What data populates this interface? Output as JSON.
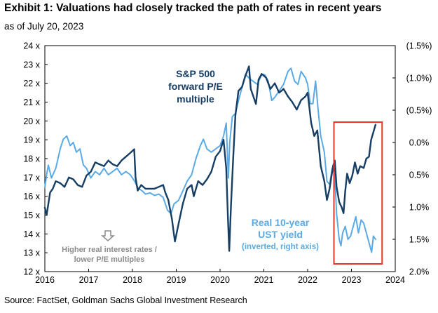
{
  "title": "Exhibit 1: Valuations had closely tracked the path of rates in recent years",
  "subtitle": "as of July 20, 2023",
  "source": "Source: FactSet, Goldman Sachs Global Investment Research",
  "chart_data": {
    "type": "line",
    "x_ticks": [
      "2016",
      "2017",
      "2018",
      "2019",
      "2020",
      "2021",
      "2022",
      "2023",
      "2024"
    ],
    "xlim": [
      2016,
      2024
    ],
    "y_left": {
      "ticks": [
        "12 x",
        "13 x",
        "14 x",
        "15 x",
        "16 x",
        "17 x",
        "18 x",
        "19 x",
        "20 x",
        "21 x",
        "22 x",
        "23 x",
        "24 x"
      ],
      "ylim": [
        12,
        24
      ]
    },
    "y_right": {
      "ticks": [
        "(1.5%)",
        "(1.0%)",
        "(0.5%)",
        "0.0%",
        "0.5%",
        "1.0%",
        "1.5%",
        "2.0%"
      ],
      "ylim": [
        -1.5,
        2.0
      ],
      "inverted": true,
      "scale_note": "right axis values shown with parentheses are negative"
    },
    "grid": false,
    "series": [
      {
        "name": "S&P 500 forward P/E multiple",
        "axis": "left",
        "color": "#163d64",
        "points": [
          [
            2016.0,
            15.4
          ],
          [
            2016.04,
            15.0
          ],
          [
            2016.08,
            15.6
          ],
          [
            2016.12,
            16.2
          ],
          [
            2016.18,
            16.4
          ],
          [
            2016.25,
            16.8
          ],
          [
            2016.35,
            16.7
          ],
          [
            2016.45,
            16.5
          ],
          [
            2016.55,
            17.0
          ],
          [
            2016.65,
            16.9
          ],
          [
            2016.75,
            16.6
          ],
          [
            2016.85,
            16.5
          ],
          [
            2016.95,
            17.1
          ],
          [
            2017.05,
            17.3
          ],
          [
            2017.15,
            17.8
          ],
          [
            2017.25,
            17.7
          ],
          [
            2017.35,
            17.6
          ],
          [
            2017.45,
            17.9
          ],
          [
            2017.55,
            17.7
          ],
          [
            2017.65,
            17.6
          ],
          [
            2017.75,
            17.9
          ],
          [
            2017.85,
            18.1
          ],
          [
            2017.95,
            18.3
          ],
          [
            2018.04,
            18.5
          ],
          [
            2018.07,
            17.0
          ],
          [
            2018.12,
            16.3
          ],
          [
            2018.2,
            16.6
          ],
          [
            2018.3,
            16.4
          ],
          [
            2018.4,
            16.4
          ],
          [
            2018.5,
            16.4
          ],
          [
            2018.6,
            16.5
          ],
          [
            2018.7,
            16.6
          ],
          [
            2018.75,
            16.2
          ],
          [
            2018.82,
            15.8
          ],
          [
            2018.9,
            14.8
          ],
          [
            2018.97,
            13.6
          ],
          [
            2019.05,
            14.5
          ],
          [
            2019.15,
            15.6
          ],
          [
            2019.25,
            16.4
          ],
          [
            2019.35,
            16.6
          ],
          [
            2019.4,
            16.0
          ],
          [
            2019.5,
            16.8
          ],
          [
            2019.6,
            16.6
          ],
          [
            2019.7,
            16.9
          ],
          [
            2019.8,
            17.3
          ],
          [
            2019.9,
            18.1
          ],
          [
            2020.0,
            18.4
          ],
          [
            2020.08,
            19.0
          ],
          [
            2020.14,
            17.5
          ],
          [
            2020.18,
            14.8
          ],
          [
            2020.21,
            13.1
          ],
          [
            2020.25,
            15.5
          ],
          [
            2020.3,
            18.0
          ],
          [
            2020.35,
            20.3
          ],
          [
            2020.42,
            21.6
          ],
          [
            2020.5,
            21.8
          ],
          [
            2020.58,
            22.4
          ],
          [
            2020.66,
            22.9
          ],
          [
            2020.7,
            21.7
          ],
          [
            2020.76,
            21.3
          ],
          [
            2020.82,
            20.9
          ],
          [
            2020.88,
            22.2
          ],
          [
            2020.95,
            22.5
          ],
          [
            2021.05,
            22.3
          ],
          [
            2021.15,
            21.7
          ],
          [
            2021.25,
            22.0
          ],
          [
            2021.35,
            21.5
          ],
          [
            2021.45,
            21.7
          ],
          [
            2021.55,
            21.3
          ],
          [
            2021.65,
            21.0
          ],
          [
            2021.75,
            20.6
          ],
          [
            2021.85,
            21.1
          ],
          [
            2021.95,
            21.3
          ],
          [
            2022.0,
            21.5
          ],
          [
            2022.08,
            19.9
          ],
          [
            2022.15,
            19.2
          ],
          [
            2022.22,
            19.5
          ],
          [
            2022.3,
            17.6
          ],
          [
            2022.38,
            16.8
          ],
          [
            2022.44,
            15.8
          ],
          [
            2022.5,
            16.4
          ],
          [
            2022.58,
            17.6
          ],
          [
            2022.62,
            17.9
          ],
          [
            2022.66,
            16.5
          ],
          [
            2022.72,
            15.7
          ],
          [
            2022.78,
            15.4
          ],
          [
            2022.82,
            15.1
          ],
          [
            2022.86,
            16.3
          ],
          [
            2022.9,
            17.2
          ],
          [
            2022.96,
            16.7
          ],
          [
            2023.02,
            17.1
          ],
          [
            2023.08,
            17.8
          ],
          [
            2023.14,
            17.2
          ],
          [
            2023.2,
            17.6
          ],
          [
            2023.28,
            17.5
          ],
          [
            2023.34,
            18.0
          ],
          [
            2023.4,
            18.1
          ],
          [
            2023.45,
            19.0
          ],
          [
            2023.5,
            19.4
          ],
          [
            2023.55,
            19.8
          ]
        ]
      },
      {
        "name": "Real 10-year UST yield (inverted, right axis)",
        "axis": "right",
        "color": "#5aaae6",
        "points": [
          [
            2016.0,
            0.7
          ],
          [
            2016.04,
            0.5
          ],
          [
            2016.08,
            0.35
          ],
          [
            2016.15,
            0.55
          ],
          [
            2016.25,
            0.4
          ],
          [
            2016.35,
            0.1
          ],
          [
            2016.42,
            -0.05
          ],
          [
            2016.5,
            -0.1
          ],
          [
            2016.58,
            0.05
          ],
          [
            2016.65,
            0.0
          ],
          [
            2016.72,
            0.15
          ],
          [
            2016.8,
            0.1
          ],
          [
            2016.88,
            0.35
          ],
          [
            2016.95,
            0.4
          ],
          [
            2017.05,
            0.55
          ],
          [
            2017.15,
            0.45
          ],
          [
            2017.25,
            0.5
          ],
          [
            2017.35,
            0.4
          ],
          [
            2017.45,
            0.5
          ],
          [
            2017.55,
            0.45
          ],
          [
            2017.65,
            0.4
          ],
          [
            2017.75,
            0.5
          ],
          [
            2017.85,
            0.45
          ],
          [
            2017.95,
            0.5
          ],
          [
            2018.05,
            0.6
          ],
          [
            2018.12,
            0.7
          ],
          [
            2018.22,
            0.75
          ],
          [
            2018.3,
            0.8
          ],
          [
            2018.4,
            0.78
          ],
          [
            2018.5,
            0.82
          ],
          [
            2018.6,
            0.8
          ],
          [
            2018.7,
            0.85
          ],
          [
            2018.8,
            1.05
          ],
          [
            2018.88,
            1.1
          ],
          [
            2018.95,
            0.95
          ],
          [
            2019.05,
            0.9
          ],
          [
            2019.15,
            0.75
          ],
          [
            2019.25,
            0.6
          ],
          [
            2019.35,
            0.5
          ],
          [
            2019.45,
            0.25
          ],
          [
            2019.55,
            0.05
          ],
          [
            2019.62,
            -0.05
          ],
          [
            2019.7,
            0.1
          ],
          [
            2019.8,
            0.15
          ],
          [
            2019.9,
            0.1
          ],
          [
            2020.0,
            0.05
          ],
          [
            2020.08,
            -0.1
          ],
          [
            2020.14,
            -0.3
          ],
          [
            2020.19,
            0.55
          ],
          [
            2020.22,
            0.0
          ],
          [
            2020.28,
            -0.4
          ],
          [
            2020.35,
            -0.45
          ],
          [
            2020.42,
            -0.65
          ],
          [
            2020.5,
            -0.85
          ],
          [
            2020.58,
            -1.05
          ],
          [
            2020.66,
            -1.0
          ],
          [
            2020.75,
            -0.95
          ],
          [
            2020.85,
            -0.9
          ],
          [
            2020.95,
            -1.05
          ],
          [
            2021.02,
            -1.05
          ],
          [
            2021.1,
            -0.95
          ],
          [
            2021.18,
            -0.65
          ],
          [
            2021.25,
            -0.7
          ],
          [
            2021.35,
            -0.8
          ],
          [
            2021.45,
            -0.9
          ],
          [
            2021.55,
            -1.1
          ],
          [
            2021.62,
            -1.15
          ],
          [
            2021.7,
            -0.95
          ],
          [
            2021.78,
            -0.9
          ],
          [
            2021.85,
            -1.1
          ],
          [
            2021.95,
            -1.0
          ],
          [
            2022.0,
            -0.9
          ],
          [
            2022.06,
            -0.6
          ],
          [
            2022.12,
            -0.6
          ],
          [
            2022.18,
            -0.95
          ],
          [
            2022.24,
            -0.5
          ],
          [
            2022.3,
            -0.1
          ],
          [
            2022.38,
            0.15
          ],
          [
            2022.44,
            0.6
          ],
          [
            2022.5,
            0.65
          ],
          [
            2022.56,
            0.4
          ],
          [
            2022.62,
            0.5
          ],
          [
            2022.66,
            1.1
          ],
          [
            2022.72,
            1.5
          ],
          [
            2022.76,
            1.6
          ],
          [
            2022.8,
            1.4
          ],
          [
            2022.86,
            1.3
          ],
          [
            2022.92,
            1.5
          ],
          [
            2022.98,
            1.45
          ],
          [
            2023.04,
            1.3
          ],
          [
            2023.1,
            1.15
          ],
          [
            2023.16,
            1.4
          ],
          [
            2023.22,
            1.2
          ],
          [
            2023.28,
            1.25
          ],
          [
            2023.34,
            1.4
          ],
          [
            2023.4,
            1.55
          ],
          [
            2023.46,
            1.7
          ],
          [
            2023.5,
            1.45
          ],
          [
            2023.55,
            1.5
          ]
        ]
      }
    ],
    "annotations": {
      "sp500_label": [
        "S&P 500",
        "forward P/E",
        "multiple"
      ],
      "real_label": [
        "Real 10-year",
        "UST yield"
      ],
      "real_sublabel": "(inverted, right axis)",
      "note": [
        "Higher real interest rates /",
        "lower P/E multiples"
      ],
      "note_icon": "down-arrow-icon",
      "highlight_box": {
        "from": "2022.6",
        "to": "2023.7",
        "color": "#e8352b"
      }
    }
  }
}
